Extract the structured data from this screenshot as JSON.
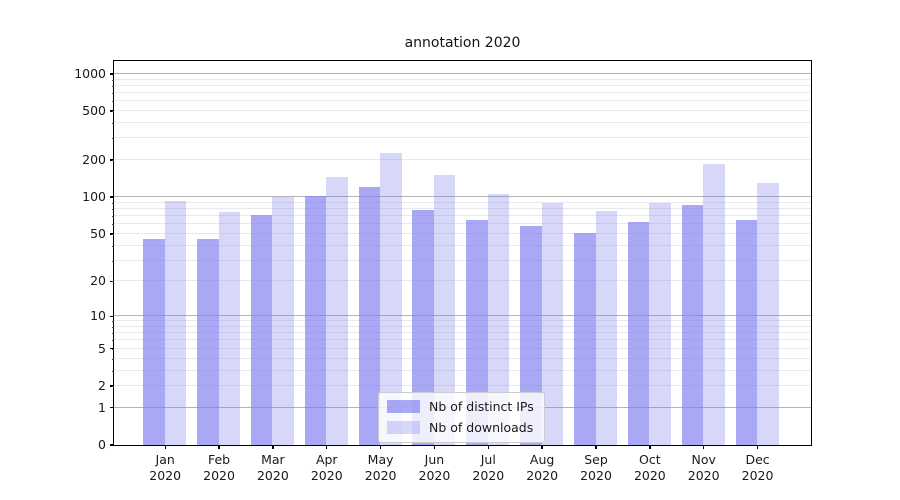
{
  "chart_data": {
    "type": "bar",
    "title": "annotation 2020",
    "categories": [
      "Jan 2020",
      "Feb 2020",
      "Mar 2020",
      "Apr 2020",
      "May 2020",
      "Jun 2020",
      "Jul 2020",
      "Aug 2020",
      "Sep 2020",
      "Oct 2020",
      "Nov 2020",
      "Dec 2020"
    ],
    "series": [
      {
        "name": "Nb of distinct IPs",
        "color": "rgba(127,127,240,0.68)",
        "values": [
          45,
          45,
          71,
          101,
          121,
          78,
          64,
          57,
          50,
          62,
          85,
          65
        ]
      },
      {
        "name": "Nb of downloads",
        "color": "rgba(127,127,240,0.31)",
        "values": [
          93,
          75,
          100,
          145,
          228,
          150,
          106,
          88,
          76,
          89,
          184,
          130
        ]
      }
    ],
    "yscale": "log1p",
    "ytick_labels": [
      0,
      1,
      2,
      5,
      10,
      20,
      50,
      100,
      200,
      500,
      1000
    ],
    "ylim": [
      0,
      1273
    ],
    "grid": {
      "major_values": [
        1,
        10,
        100,
        1000
      ],
      "minor_values": [
        2,
        3,
        4,
        5,
        6,
        7,
        8,
        9,
        20,
        30,
        40,
        50,
        60,
        70,
        80,
        90,
        200,
        300,
        400,
        500,
        600,
        700,
        800,
        900
      ],
      "major_color": "#b3b3b3",
      "minor_color": "#e9e9ed"
    },
    "legend_position": "lower center",
    "background": "#ffffff"
  }
}
